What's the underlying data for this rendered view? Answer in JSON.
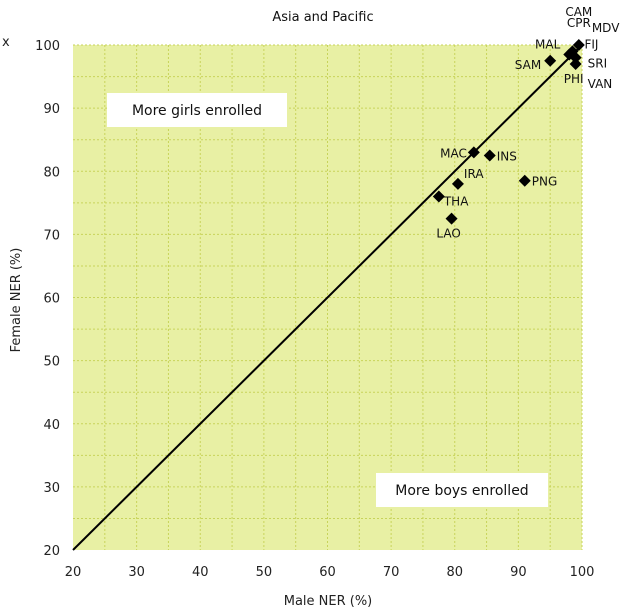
{
  "page": {
    "stray_mark": "x"
  },
  "chart_data": {
    "type": "scatter",
    "title": "Asia and Pacific",
    "xlabel": "Male NER (%)",
    "ylabel": "Female NER (%)",
    "xlim": [
      20,
      100
    ],
    "ylim": [
      20,
      100
    ],
    "xticks": [
      "20",
      "30",
      "40",
      "50",
      "60",
      "70",
      "80",
      "90",
      "100"
    ],
    "yticks": [
      "20",
      "30",
      "40",
      "50",
      "60",
      "70",
      "80",
      "90",
      "100"
    ],
    "grid": true,
    "colors": {
      "plot_bg": "#e8f0a4",
      "grid": "#c7d35a",
      "marker": "#000000",
      "line": "#000000",
      "box": "#ffffff"
    },
    "parity_line": {
      "x": [
        20,
        100
      ],
      "y": [
        20,
        100
      ]
    },
    "regions": {
      "above": "More girls enrolled",
      "below": "More boys enrolled"
    },
    "points": [
      {
        "label": "CAM",
        "x": 99.5,
        "y": 100
      },
      {
        "label": "CPR",
        "x": 99.5,
        "y": 100
      },
      {
        "label": "MDV",
        "x": 99.5,
        "y": 100
      },
      {
        "label": "FIJ",
        "x": 98.5,
        "y": 99
      },
      {
        "label": "MAL",
        "x": 98,
        "y": 98.5
      },
      {
        "label": "SRI",
        "x": 99,
        "y": 98
      },
      {
        "label": "VAN",
        "x": 99,
        "y": 97
      },
      {
        "label": "SAM",
        "x": 95,
        "y": 97.5
      },
      {
        "label": "PHI",
        "x": 99,
        "y": 97
      },
      {
        "label": "MAC",
        "x": 83,
        "y": 83
      },
      {
        "label": "INS",
        "x": 85.5,
        "y": 82.5
      },
      {
        "label": "IRA",
        "x": 80.5,
        "y": 78
      },
      {
        "label": "PNG",
        "x": 91,
        "y": 78.5
      },
      {
        "label": "THA",
        "x": 77.5,
        "y": 76
      },
      {
        "label": "LAO",
        "x": 79.5,
        "y": 72.5
      }
    ]
  }
}
